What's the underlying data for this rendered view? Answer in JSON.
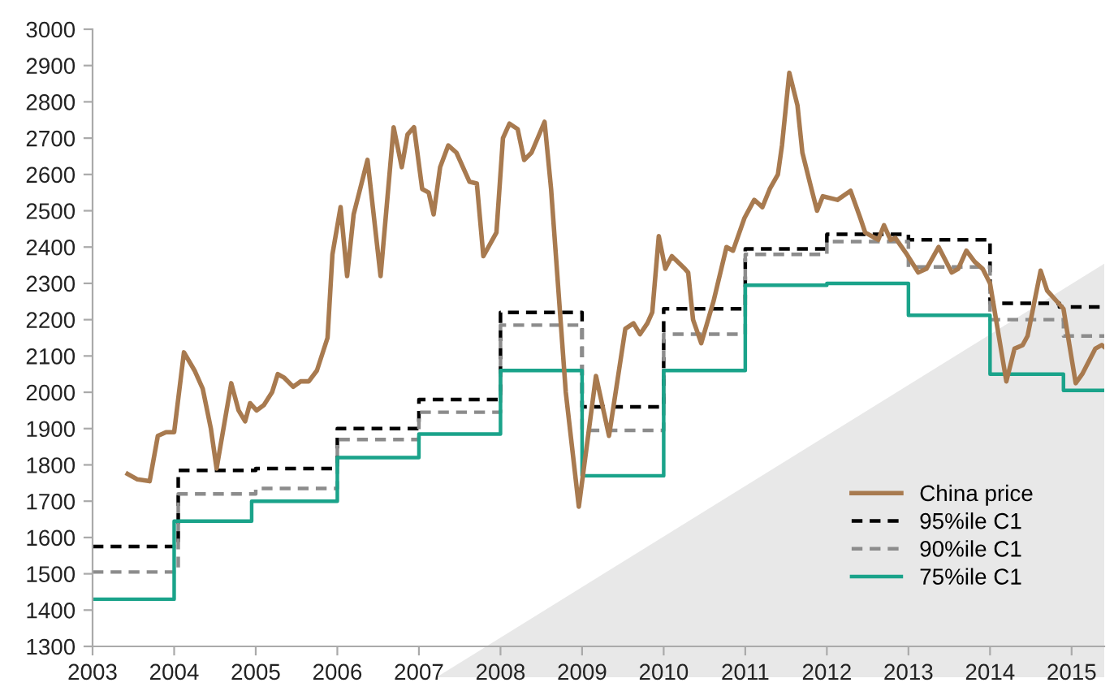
{
  "chart_data": {
    "type": "line",
    "xlim": [
      2003,
      2015.4
    ],
    "xticks": [
      2003,
      2004,
      2005,
      2006,
      2007,
      2008,
      2009,
      2010,
      2011,
      2012,
      2013,
      2014,
      2015
    ],
    "ylim": [
      1300,
      3000
    ],
    "yticks": [
      1300,
      1400,
      1500,
      1600,
      1700,
      1800,
      1900,
      2000,
      2100,
      2200,
      2300,
      2400,
      2500,
      2600,
      2700,
      2800,
      2900,
      3000
    ],
    "grid": false,
    "legend": "bottom right",
    "series": [
      {
        "name": "China price",
        "line_style": "solid",
        "color": "#a87a4f",
        "x": [
          2003.43,
          2003.55,
          2003.7,
          2003.8,
          2003.9,
          2004.0,
          2004.12,
          2004.25,
          2004.35,
          2004.45,
          2004.52,
          2004.7,
          2004.79,
          2004.87,
          2004.93,
          2005.01,
          2005.1,
          2005.2,
          2005.27,
          2005.35,
          2005.46,
          2005.55,
          2005.65,
          2005.75,
          2005.88,
          2005.94,
          2006.04,
          2006.12,
          2006.2,
          2006.37,
          2006.53,
          2006.69,
          2006.79,
          2006.86,
          2006.94,
          2007.04,
          2007.12,
          2007.18,
          2007.26,
          2007.36,
          2007.46,
          2007.62,
          2007.71,
          2007.79,
          2007.95,
          2008.03,
          2008.11,
          2008.21,
          2008.29,
          2008.38,
          2008.54,
          2008.62,
          2008.8,
          2008.96,
          2009.17,
          2009.33,
          2009.53,
          2009.63,
          2009.71,
          2009.8,
          2009.86,
          2009.94,
          2010.02,
          2010.1,
          2010.26,
          2010.3,
          2010.36,
          2010.46,
          2010.61,
          2010.77,
          2010.85,
          2010.99,
          2011.11,
          2011.21,
          2011.3,
          2011.4,
          2011.45,
          2011.54,
          2011.64,
          2011.7,
          2011.8,
          2011.88,
          2011.95,
          2012.13,
          2012.29,
          2012.41,
          2012.47,
          2012.63,
          2012.7,
          2012.78,
          2012.84,
          2012.98,
          2013.12,
          2013.22,
          2013.37,
          2013.53,
          2013.61,
          2013.71,
          2013.81,
          2013.91,
          2014.0,
          2014.2,
          2014.3,
          2014.4,
          2014.46,
          2014.62,
          2014.7,
          2014.9,
          2015.05,
          2015.13,
          2015.29,
          2015.37,
          2015.4
        ],
        "values": [
          1775,
          1760,
          1755,
          1880,
          1890,
          1890,
          2110,
          2060,
          2010,
          1900,
          1790,
          2025,
          1950,
          1920,
          1970,
          1950,
          1965,
          2000,
          2050,
          2040,
          2015,
          2030,
          2030,
          2060,
          2150,
          2380,
          2510,
          2320,
          2490,
          2640,
          2320,
          2730,
          2620,
          2710,
          2730,
          2560,
          2550,
          2490,
          2620,
          2680,
          2660,
          2580,
          2575,
          2375,
          2440,
          2700,
          2740,
          2725,
          2640,
          2660,
          2745,
          2560,
          2000,
          1685,
          2045,
          1880,
          2175,
          2190,
          2160,
          2190,
          2220,
          2430,
          2340,
          2375,
          2340,
          2330,
          2200,
          2135,
          2250,
          2400,
          2390,
          2480,
          2530,
          2510,
          2560,
          2600,
          2680,
          2880,
          2790,
          2660,
          2570,
          2500,
          2540,
          2530,
          2555,
          2480,
          2440,
          2420,
          2460,
          2420,
          2425,
          2380,
          2330,
          2340,
          2400,
          2330,
          2340,
          2390,
          2360,
          2340,
          2300,
          2030,
          2120,
          2130,
          2155,
          2335,
          2280,
          2230,
          2025,
          2050,
          2120,
          2130,
          2125
        ]
      },
      {
        "name": "95%ile C1",
        "type": "step",
        "line_style": "dashed",
        "color": "#000000",
        "x": [
          2003,
          2004.05,
          2005.0,
          2006.0,
          2007.0,
          2008.0,
          2009.0,
          2010.0,
          2011.0,
          2012.0,
          2013.0,
          2014.0,
          2014.85,
          2015.4
        ],
        "values": [
          1575,
          1785,
          1790,
          1900,
          1980,
          2220,
          1960,
          2230,
          2395,
          2435,
          2420,
          2245,
          2235,
          2235
        ]
      },
      {
        "name": "90%ile C1",
        "type": "step",
        "line_style": "dashed",
        "color": "#8c8c8c",
        "x": [
          2003,
          2004.05,
          2005.0,
          2006.0,
          2007.0,
          2008.0,
          2009.0,
          2010.0,
          2011.0,
          2012.0,
          2013.0,
          2014.0,
          2014.9,
          2015.4
        ],
        "values": [
          1505,
          1720,
          1735,
          1870,
          1945,
          2185,
          1895,
          2160,
          2380,
          2415,
          2345,
          2200,
          2155,
          2155
        ]
      },
      {
        "name": "75%ile C1",
        "type": "step",
        "line_style": "solid",
        "color": "#1aa38a",
        "x": [
          2003,
          2004.0,
          2004.95,
          2006.0,
          2007.0,
          2008.0,
          2009.0,
          2010.0,
          2011.0,
          2012.0,
          2013.0,
          2014.0,
          2014.9,
          2015.4
        ],
        "values": [
          1430,
          1645,
          1700,
          1820,
          1885,
          2060,
          1770,
          2060,
          2295,
          2300,
          2212,
          2050,
          2005,
          2005
        ]
      }
    ]
  }
}
